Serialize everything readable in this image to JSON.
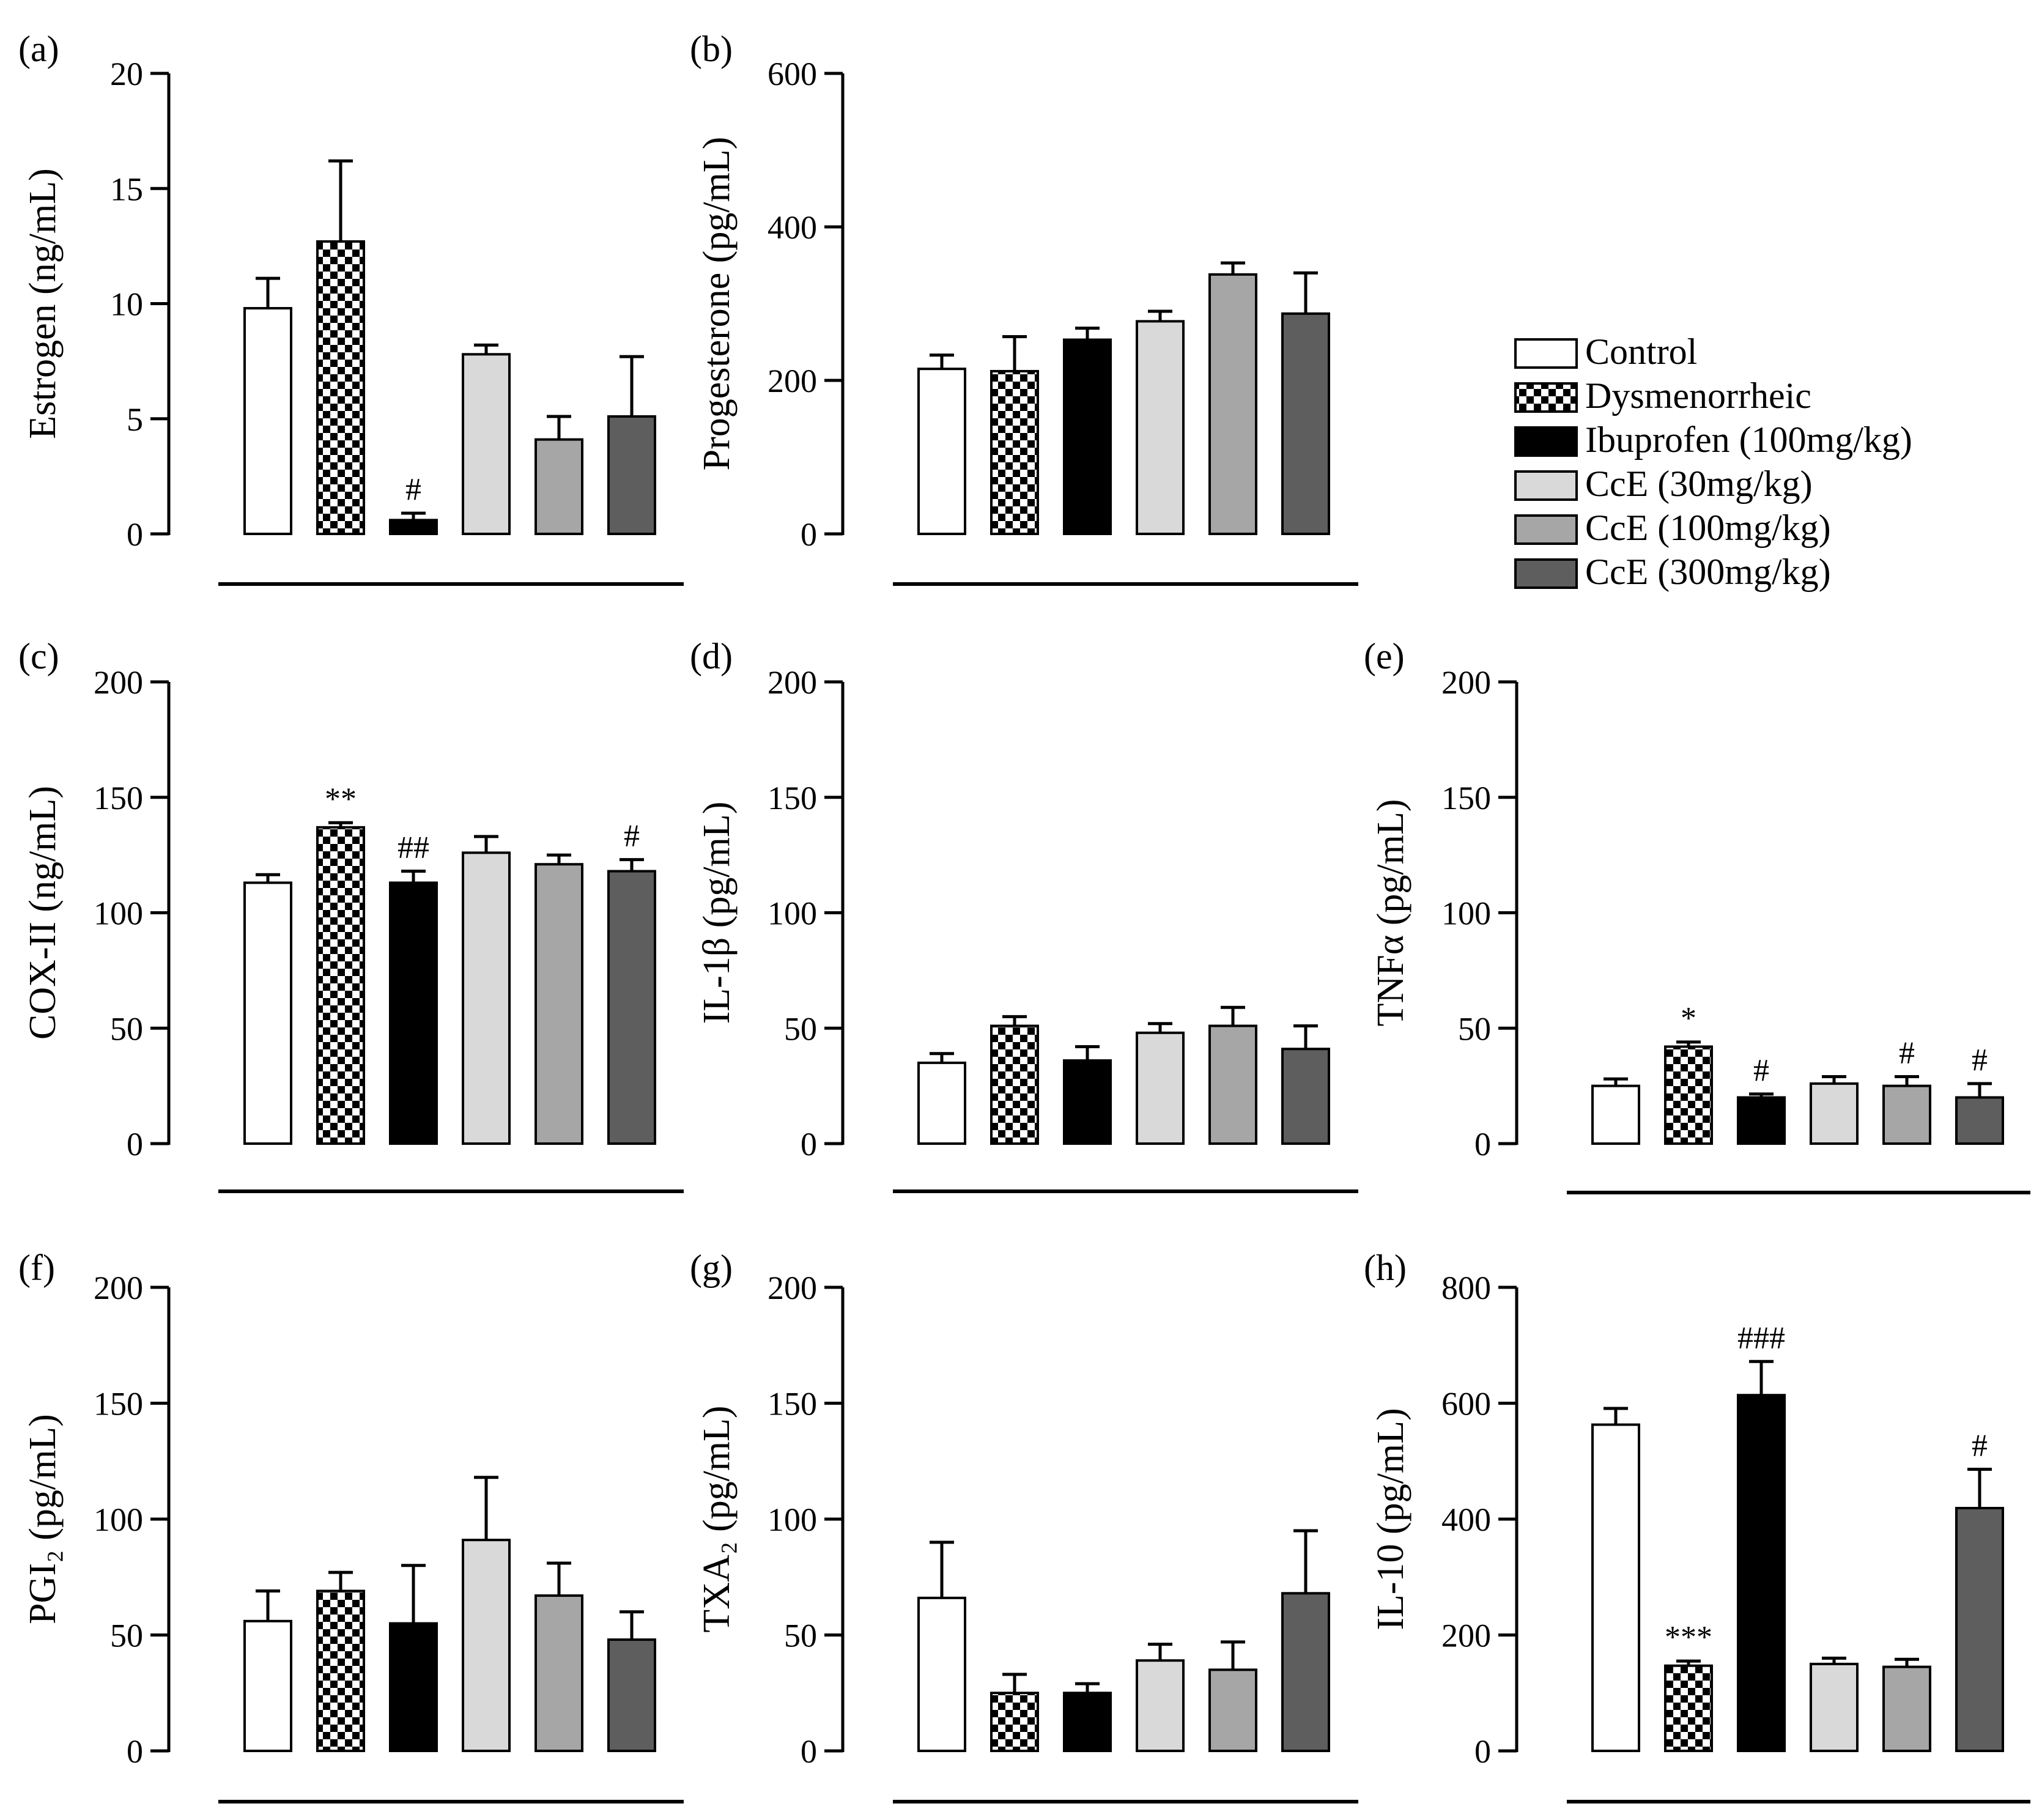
{
  "figure": {
    "title": ""
  },
  "groups": [
    {
      "key": "control",
      "name": "Control",
      "color": "#ffffff"
    },
    {
      "key": "dysmenorrheic",
      "name": "Dysmenorrheic",
      "color": "checker"
    },
    {
      "key": "ibuprofen",
      "name": "Ibuprofen (100mg/kg)",
      "color": "#000000"
    },
    {
      "key": "cce30",
      "name": "CcE (30mg/kg)",
      "color": "#d9d9d9"
    },
    {
      "key": "cce100",
      "name": "CcE (100mg/kg)",
      "color": "#a6a6a6"
    },
    {
      "key": "cce300",
      "name": "CcE (300mg/kg)",
      "color": "#5e5e5e"
    }
  ],
  "chart_data": [
    {
      "type": "bar",
      "panel": "(a)",
      "title": "",
      "ylabel": "Estrogen (ng/mL)",
      "xlabel": "",
      "ylim": [
        0,
        20
      ],
      "yticks": [
        "0",
        "5",
        "10",
        "15",
        "20"
      ],
      "categories": [
        "Control",
        "Dysmenorrheic",
        "Ibuprofen (100mg/kg)",
        "CcE (30mg/kg)",
        "CcE (100mg/kg)",
        "CcE (300mg/kg)"
      ],
      "values": [
        9.8,
        12.7,
        0.6,
        7.8,
        4.1,
        5.1
      ],
      "errors": [
        1.3,
        3.5,
        0.3,
        0.4,
        1.0,
        2.6
      ],
      "annotations": [
        "",
        "",
        "#",
        "",
        "",
        ""
      ]
    },
    {
      "type": "bar",
      "panel": "(b)",
      "title": "",
      "ylabel": "Progesterone (pg/mL)",
      "xlabel": "",
      "ylim": [
        0,
        600
      ],
      "yticks": [
        "0",
        "200",
        "400",
        "600"
      ],
      "categories": [
        "Control",
        "Dysmenorrheic",
        "Ibuprofen (100mg/kg)",
        "CcE (30mg/kg)",
        "CcE (100mg/kg)",
        "CcE (300mg/kg)"
      ],
      "values": [
        215,
        212,
        253,
        277,
        338,
        287
      ],
      "errors": [
        18,
        45,
        15,
        13,
        15,
        53
      ],
      "annotations": [
        "",
        "",
        "",
        "",
        "",
        ""
      ]
    },
    {
      "type": "bar",
      "panel": "(c)",
      "title": "",
      "ylabel": "COX-II (ng/mL)",
      "xlabel": "",
      "ylim": [
        0,
        200
      ],
      "yticks": [
        "0",
        "50",
        "100",
        "150",
        "200"
      ],
      "categories": [
        "Control",
        "Dysmenorrheic",
        "Ibuprofen (100mg/kg)",
        "CcE (30mg/kg)",
        "CcE (100mg/kg)",
        "CcE (300mg/kg)"
      ],
      "values": [
        113,
        137,
        113,
        126,
        121,
        118
      ],
      "errors": [
        3.5,
        2,
        5,
        7,
        4,
        5
      ],
      "annotations": [
        "",
        "**",
        "##",
        "",
        "",
        "#"
      ]
    },
    {
      "type": "bar",
      "panel": "(d)",
      "title": "",
      "ylabel": "IL-1β (pg/mL)",
      "xlabel": "",
      "ylim": [
        0,
        200
      ],
      "yticks": [
        "0",
        "50",
        "100",
        "150",
        "200"
      ],
      "categories": [
        "Control",
        "Dysmenorrheic",
        "Ibuprofen (100mg/kg)",
        "CcE (30mg/kg)",
        "CcE (100mg/kg)",
        "CcE (300mg/kg)"
      ],
      "values": [
        35,
        51,
        36,
        48,
        51,
        41
      ],
      "errors": [
        4,
        4,
        6,
        4,
        8,
        10
      ],
      "annotations": [
        "",
        "",
        "",
        "",
        "",
        ""
      ]
    },
    {
      "type": "bar",
      "panel": "(e)",
      "title": "",
      "ylabel": "TNFα (pg/mL)",
      "xlabel": "",
      "ylim": [
        0,
        200
      ],
      "yticks": [
        "0",
        "50",
        "100",
        "150",
        "200"
      ],
      "categories": [
        "Control",
        "Dysmenorrheic",
        "Ibuprofen (100mg/kg)",
        "CcE (30mg/kg)",
        "CcE (100mg/kg)",
        "CcE (300mg/kg)"
      ],
      "values": [
        25,
        42,
        20,
        26,
        25,
        20
      ],
      "errors": [
        3,
        2,
        1.5,
        3,
        4,
        6
      ],
      "annotations": [
        "",
        "*",
        "#",
        "",
        "#",
        "#"
      ]
    },
    {
      "type": "bar",
      "panel": "(f)",
      "title": "",
      "ylabel": "PGI₂ (pg/mL)",
      "xlabel": "",
      "ylim": [
        0,
        200
      ],
      "yticks": [
        "0",
        "50",
        "100",
        "150",
        "200"
      ],
      "categories": [
        "Control",
        "Dysmenorrheic",
        "Ibuprofen (100mg/kg)",
        "CcE (30mg/kg)",
        "CcE (100mg/kg)",
        "CcE (300mg/kg)"
      ],
      "values": [
        56,
        69,
        55,
        91,
        67,
        48
      ],
      "errors": [
        13,
        8,
        25,
        27,
        14,
        12
      ],
      "annotations": [
        "",
        "",
        "",
        "",
        "",
        ""
      ]
    },
    {
      "type": "bar",
      "panel": "(g)",
      "title": "",
      "ylabel": "TXA₂ (pg/mL)",
      "xlabel": "",
      "ylim": [
        0,
        200
      ],
      "yticks": [
        "0",
        "50",
        "100",
        "150",
        "200"
      ],
      "categories": [
        "Control",
        "Dysmenorrheic",
        "Ibuprofen (100mg/kg)",
        "CcE (30mg/kg)",
        "CcE (100mg/kg)",
        "CcE (300mg/kg)"
      ],
      "values": [
        66,
        25,
        25,
        39,
        35,
        68
      ],
      "errors": [
        24,
        8,
        4,
        7,
        12,
        27
      ],
      "annotations": [
        "",
        "",
        "",
        "",
        "",
        ""
      ]
    },
    {
      "type": "bar",
      "panel": "(h)",
      "title": "",
      "ylabel": "IL-10 (pg/mL)",
      "xlabel": "",
      "ylim": [
        0,
        800
      ],
      "yticks": [
        "0",
        "200",
        "400",
        "600",
        "800"
      ],
      "categories": [
        "Control",
        "Dysmenorrheic",
        "Ibuprofen (100mg/kg)",
        "CcE (30mg/kg)",
        "CcE (100mg/kg)",
        "CcE (300mg/kg)"
      ],
      "values": [
        563,
        147,
        614,
        150,
        145,
        419
      ],
      "errors": [
        28,
        8,
        58,
        10,
        13,
        67
      ],
      "annotations": [
        "",
        "***",
        "###",
        "",
        "",
        "#"
      ]
    }
  ],
  "legend": {
    "position": "right of panel (b)",
    "items": [
      "Control",
      "Dysmenorrheic",
      "Ibuprofen (100mg/kg)",
      "CcE (30mg/kg)",
      "CcE (100mg/kg)",
      "CcE (300mg/kg)"
    ]
  }
}
